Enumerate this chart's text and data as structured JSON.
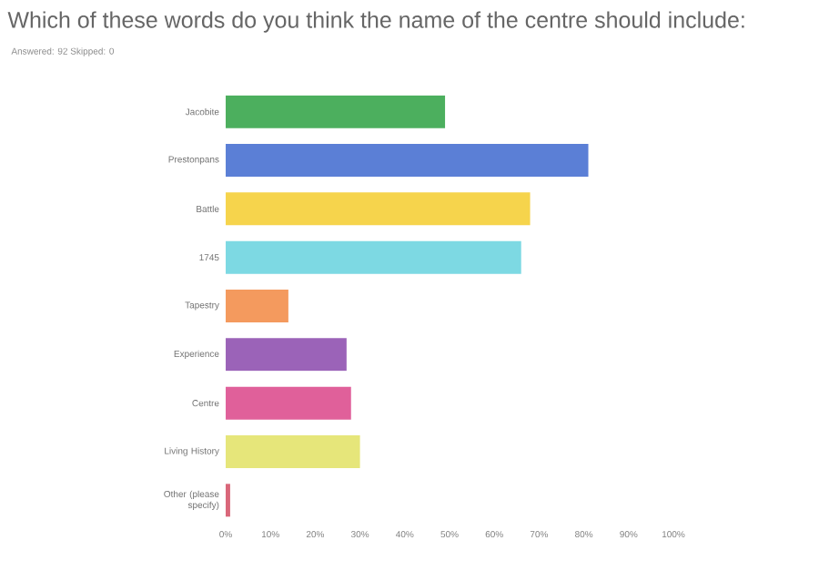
{
  "chart_data": {
    "type": "bar",
    "orientation": "horizontal",
    "title": "Which of these words do you think the name of the centre should include:",
    "subtitle": "Answered: 92    Skipped: 0",
    "categories": [
      "Jacobite",
      "Prestonpans",
      "Battle",
      "1745",
      "Tapestry",
      "Experience",
      "Centre",
      "Living History",
      "Other (please specify)"
    ],
    "values": [
      49,
      81,
      68,
      66,
      14,
      27,
      28,
      30,
      1
    ],
    "colors": [
      "#4caf5e",
      "#5b7fd6",
      "#f6d44c",
      "#7dd9e3",
      "#f49a5e",
      "#9b63b8",
      "#e0609a",
      "#e6e67a",
      "#d9677a"
    ],
    "xlim": [
      0,
      100
    ],
    "xticks": [
      {
        "value": 0,
        "label": "0%"
      },
      {
        "value": 10,
        "label": "10%"
      },
      {
        "value": 20,
        "label": "20%"
      },
      {
        "value": 30,
        "label": "30%"
      },
      {
        "value": 40,
        "label": "40%"
      },
      {
        "value": 50,
        "label": "50%"
      },
      {
        "value": 60,
        "label": "60%"
      },
      {
        "value": 70,
        "label": "70%"
      },
      {
        "value": 80,
        "label": "80%"
      },
      {
        "value": 90,
        "label": "90%"
      },
      {
        "value": 100,
        "label": "100%"
      }
    ]
  }
}
